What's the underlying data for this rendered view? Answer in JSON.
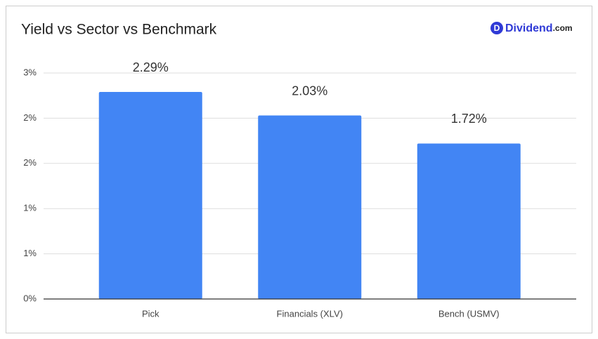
{
  "chart_data": {
    "type": "bar",
    "title": "Yield vs Sector vs Benchmark",
    "categories": [
      "Pick",
      "Financials (XLV)",
      "Bench (USMV)"
    ],
    "values": [
      2.29,
      2.03,
      1.72
    ],
    "value_labels": [
      "2.29%",
      "2.03%",
      "1.72%"
    ],
    "color": "#4285f4",
    "ylim": [
      0,
      2.5
    ],
    "yticks": [
      {
        "value": 0,
        "label": "0%"
      },
      {
        "value": 0.5,
        "label": "1%"
      },
      {
        "value": 1,
        "label": "1%"
      },
      {
        "value": 1.5,
        "label": "2%"
      },
      {
        "value": 2,
        "label": "2%"
      },
      {
        "value": 2.5,
        "label": "3%"
      }
    ],
    "grid": true
  },
  "logo": {
    "mark": "D",
    "name": "Dividend",
    "suffix": ".com"
  }
}
